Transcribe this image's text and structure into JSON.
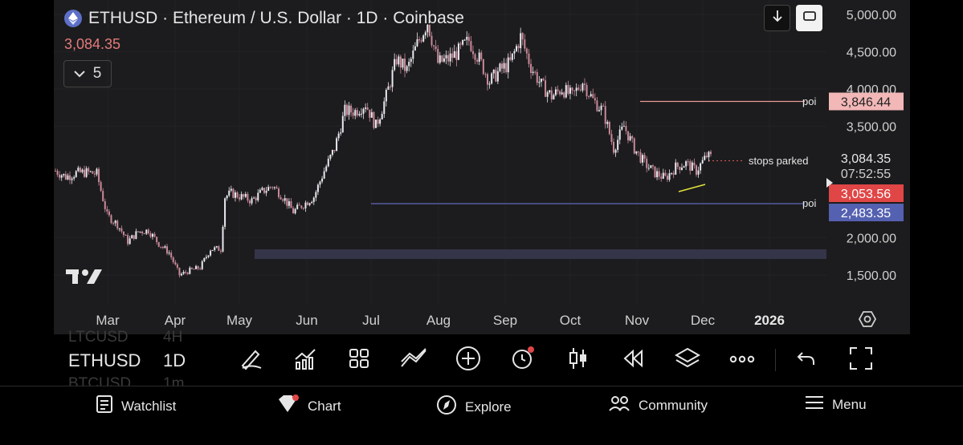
{
  "header": {
    "symbol_title": "ETHUSD · Ethereum / U.S. Dollar · 1D · Coinbase",
    "last_price": "3,084.35",
    "indicator_count": "5"
  },
  "price_axis": {
    "ticks": [
      "5,000.00",
      "4,500.00",
      "4,000.00",
      "3,500.00",
      "2,000.00",
      "1,500.00"
    ],
    "labels": [
      {
        "text": "3,846.44",
        "bg": "#f2b7b7",
        "color": "#222222"
      },
      {
        "text": "3,084.35",
        "bg": "#1c1c1e",
        "color": "#e6e6e6"
      },
      {
        "text": "07:52:55",
        "bg": "#1c1c1e",
        "color": "#cfcfcf"
      },
      {
        "text": "3,053.56",
        "bg": "#e04646",
        "color": "#ffffff"
      },
      {
        "text": "2,483.35",
        "bg": "#5460b0",
        "color": "#ffffff"
      }
    ]
  },
  "time_axis": {
    "ticks": [
      "Mar",
      "Apr",
      "May",
      "Jun",
      "Jul",
      "Aug",
      "Sep",
      "Oct",
      "Nov",
      "Dec",
      "2026"
    ]
  },
  "annotations": {
    "poi_upper": "poi",
    "poi_lower": "poi",
    "stops": "stops parked"
  },
  "chart_data": {
    "type": "candlestick",
    "resistance_level": 3846.44,
    "support_level": 2483.35,
    "current_price": 3084.35,
    "countdown": "07:52:55",
    "close_line": 3053.56,
    "path_points": [
      [
        0,
        2900
      ],
      [
        5,
        2820
      ],
      [
        10,
        2870
      ],
      [
        15,
        2880
      ],
      [
        20,
        2860
      ],
      [
        25,
        2300
      ],
      [
        30,
        2180
      ],
      [
        35,
        1950
      ],
      [
        40,
        2080
      ],
      [
        45,
        2100
      ],
      [
        50,
        1920
      ],
      [
        55,
        1800
      ],
      [
        60,
        1500
      ],
      [
        65,
        1560
      ],
      [
        70,
        1600
      ],
      [
        75,
        1850
      ],
      [
        80,
        1850
      ],
      [
        82,
        2550
      ],
      [
        85,
        2600
      ],
      [
        90,
        2550
      ],
      [
        95,
        2500
      ],
      [
        100,
        2620
      ],
      [
        105,
        2700
      ],
      [
        110,
        2550
      ],
      [
        115,
        2350
      ],
      [
        120,
        2450
      ],
      [
        125,
        2550
      ],
      [
        130,
        2900
      ],
      [
        135,
        3200
      ],
      [
        140,
        3700
      ],
      [
        145,
        3700
      ],
      [
        150,
        3800
      ],
      [
        155,
        3500
      ],
      [
        160,
        3900
      ],
      [
        165,
        4400
      ],
      [
        170,
        4250
      ],
      [
        175,
        4600
      ],
      [
        180,
        4900
      ],
      [
        185,
        4350
      ],
      [
        190,
        4400
      ],
      [
        195,
        4500
      ],
      [
        200,
        4650
      ],
      [
        205,
        4400
      ],
      [
        210,
        4100
      ],
      [
        215,
        4250
      ],
      [
        220,
        4350
      ],
      [
        225,
        4700
      ],
      [
        230,
        4300
      ],
      [
        235,
        4050
      ],
      [
        240,
        3900
      ],
      [
        245,
        4000
      ],
      [
        250,
        3900
      ],
      [
        255,
        4100
      ],
      [
        260,
        3850
      ],
      [
        265,
        3700
      ],
      [
        270,
        3200
      ],
      [
        275,
        3500
      ],
      [
        280,
        3200
      ],
      [
        285,
        3000
      ],
      [
        290,
        2870
      ],
      [
        295,
        2800
      ],
      [
        300,
        2950
      ],
      [
        305,
        3000
      ],
      [
        310,
        2900
      ],
      [
        315,
        3100
      ],
      [
        317,
        3084
      ]
    ]
  },
  "toolbar": {
    "symbol": "ETHUSD",
    "timeframe": "1D",
    "ghost_symbols": [
      "LTCUSD",
      "BTCUSD"
    ],
    "ghost_timeframes": [
      "4H",
      "1m"
    ]
  },
  "bottom_nav": {
    "items": [
      {
        "label": "Watchlist",
        "icon": "watchlist-icon"
      },
      {
        "label": "Chart",
        "icon": "chart-icon"
      },
      {
        "label": "Explore",
        "icon": "compass-icon"
      },
      {
        "label": "Community",
        "icon": "community-icon"
      },
      {
        "label": "Menu",
        "icon": "hamburger-icon"
      }
    ]
  },
  "colors": {
    "bull": "#e8e8ef",
    "bear": "#c98a98",
    "resistance": "#e89a9a",
    "support": "#5e68b8",
    "wedge": "#e3e33a",
    "zone": "#343548"
  }
}
